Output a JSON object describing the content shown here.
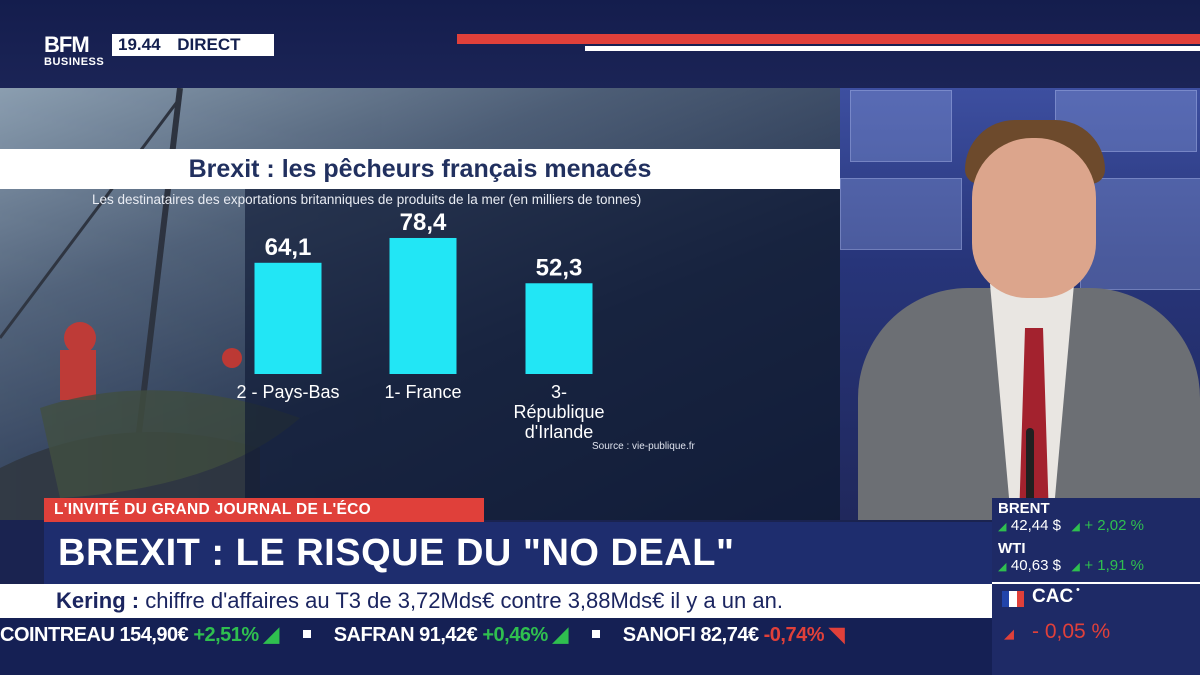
{
  "channel": {
    "logo_top": "BFM",
    "logo_bottom": "BUSINESS",
    "time": "19.44",
    "live": "DIRECT"
  },
  "chart_data": {
    "type": "bar",
    "title": "Brexit : les pêcheurs français menacés",
    "subtitle": "Les destinataires des exportations britanniques de produits de la mer (en milliers de tonnes)",
    "categories": [
      "2 - Pays-Bas",
      "1- France",
      "3- République d'Irlande"
    ],
    "category_lines": [
      [
        "2 - Pays-Bas"
      ],
      [
        "1- France"
      ],
      [
        "3-",
        "République",
        "d'Irlande"
      ]
    ],
    "values": [
      64.1,
      78.4,
      52.3
    ],
    "value_labels": [
      "64,1",
      "78,4",
      "52,3"
    ],
    "bar_color": "#22e6f5",
    "source": "Source : vie-publique.fr"
  },
  "lower_third": {
    "tag": "L'INVITÉ DU GRAND JOURNAL DE L'ÉCO",
    "headline": "BREXIT : LE RISQUE DU \"NO DEAL\"",
    "ticker_company": "Kering :",
    "ticker_text": " chiffre d'affaires au T3 de 3,72Mds€ contre 3,88Mds€ il y a un an."
  },
  "stocks": [
    {
      "name": "COINTREAU",
      "price": "154,90€",
      "change": "+2,51%",
      "dir": "up"
    },
    {
      "name": "SAFRAN",
      "price": "91,42€",
      "change": "+0,46%",
      "dir": "up"
    },
    {
      "name": "SANOFI",
      "price": "82,74€",
      "change": "-0,74%",
      "dir": "down"
    }
  ],
  "markets": {
    "brent": {
      "name": "BRENT",
      "value": "42,44 $",
      "change": "+ 2,02 %"
    },
    "wti": {
      "name": "WTI",
      "value": "40,63 $",
      "change": "+ 1,91 %"
    },
    "cac": {
      "name": "CAC",
      "change": "- 0,05 %"
    }
  },
  "colors": {
    "accent_red": "#e0403a",
    "navy": "#1e2d6e",
    "up": "#2fbf4f",
    "down": "#e0403a"
  }
}
